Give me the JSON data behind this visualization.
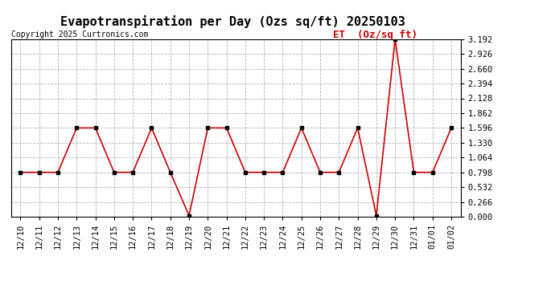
{
  "title": "Evapotranspiration per Day (Ozs sq/ft) 20250103",
  "copyright": "Copyright 2025 Curtronics.com",
  "legend_label": "ET  (Oz/sq ft)",
  "dates": [
    "12/10",
    "12/11",
    "12/12",
    "12/13",
    "12/14",
    "12/15",
    "12/16",
    "12/17",
    "12/18",
    "12/19",
    "12/20",
    "12/21",
    "12/22",
    "12/23",
    "12/24",
    "12/25",
    "12/26",
    "12/27",
    "12/28",
    "12/29",
    "12/30",
    "12/31",
    "01/01",
    "01/02"
  ],
  "values": [
    0.798,
    0.798,
    0.798,
    1.596,
    1.596,
    0.798,
    0.798,
    1.596,
    0.798,
    0.02,
    1.596,
    1.596,
    0.798,
    0.798,
    0.798,
    1.596,
    0.798,
    0.798,
    1.596,
    0.02,
    3.192,
    0.798,
    0.798,
    1.596
  ],
  "line_color": "#cc0000",
  "marker_color": "#000000",
  "background_color": "#ffffff",
  "grid_color": "#aaaaaa",
  "ylim": [
    0.0,
    3.192
  ],
  "yticks": [
    0.0,
    0.266,
    0.532,
    0.798,
    1.064,
    1.33,
    1.596,
    1.862,
    2.128,
    2.394,
    2.66,
    2.926,
    3.192
  ],
  "title_fontsize": 11,
  "copyright_fontsize": 7,
  "legend_fontsize": 9,
  "tick_fontsize": 7.5
}
